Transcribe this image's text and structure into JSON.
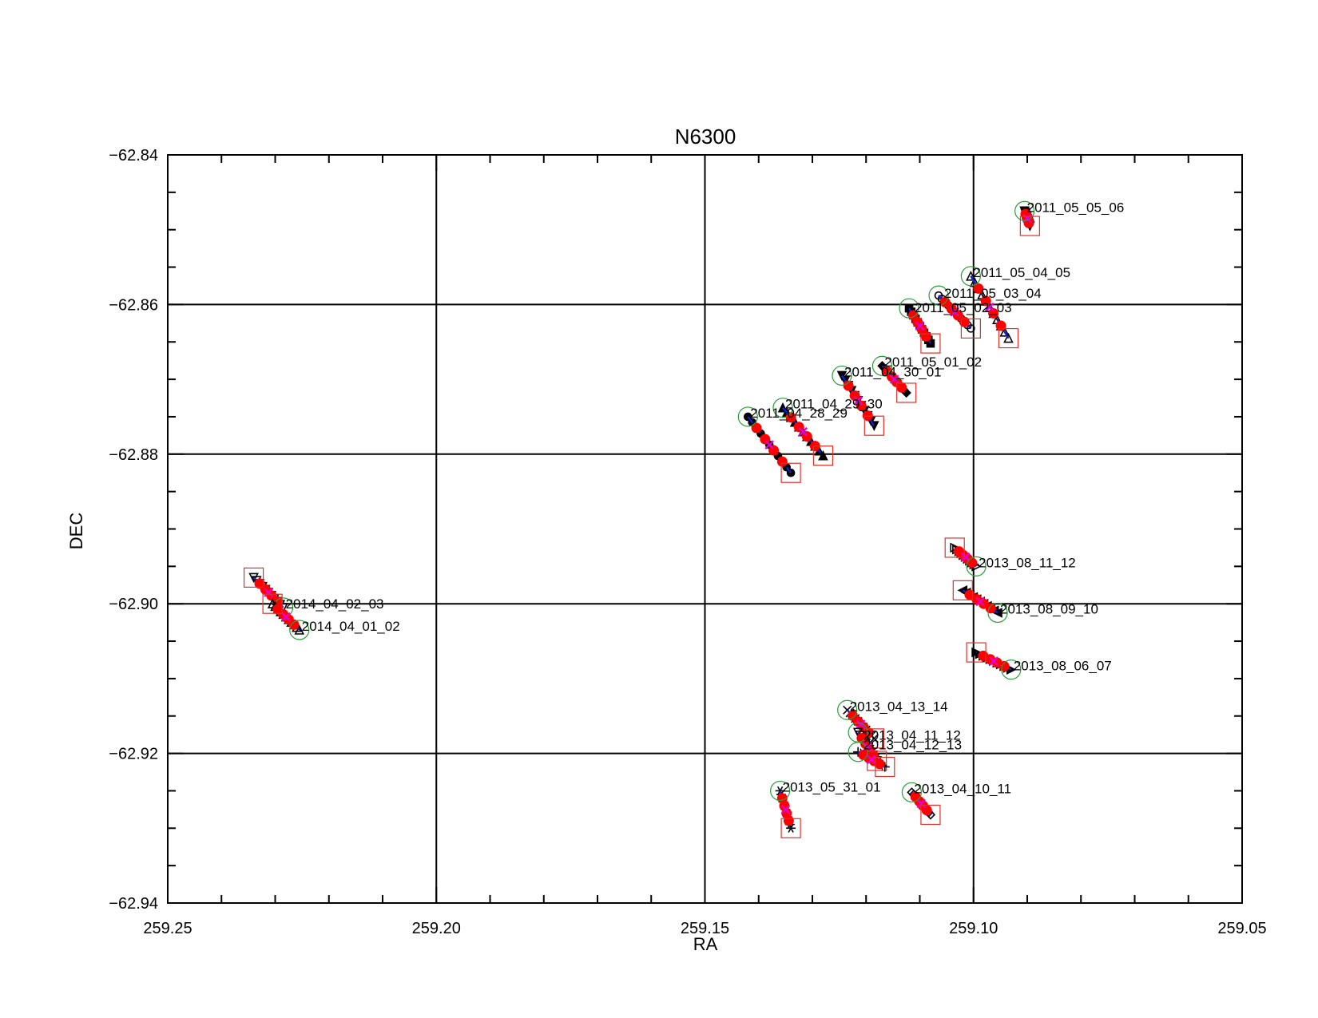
{
  "chart_data": {
    "type": "scatter",
    "title": "N6300",
    "xlabel": "RA",
    "ylabel": "DEC",
    "xlim": [
      259.25,
      259.05
    ],
    "ylim": [
      -62.94,
      -62.84
    ],
    "x_reversed": true,
    "grid": true,
    "x_ticks": [
      "259.25",
      "259.20",
      "259.15",
      "259.10",
      "259.05"
    ],
    "y_ticks": [
      "-62.84",
      "-62.86",
      "-62.88",
      "-62.90",
      "-62.92",
      "-62.94"
    ],
    "marker_legend": {
      "start": "green open circle",
      "end": "red open square",
      "points": "red filled circles",
      "midpoint": "magenta cross",
      "connector": "blue line"
    },
    "colors": {
      "start_circle": "#2a9d3a",
      "end_square": "#e0302a",
      "points": "#ff0000",
      "midpoint": "#e000e0",
      "connector": "#1020d0",
      "grid": "#000000"
    },
    "series": [
      {
        "name": "2011_05_05_06",
        "start": [
          259.0905,
          -62.8475
        ],
        "end": [
          259.0895,
          -62.8495
        ],
        "marker": "filled-triangle-down"
      },
      {
        "name": "2011_05_04_05",
        "start": [
          259.1005,
          -62.8562
        ],
        "end": [
          259.0935,
          -62.8645
        ],
        "marker": "open-triangle-up"
      },
      {
        "name": "2011_05_03_04",
        "start": [
          259.1065,
          -62.8588
        ],
        "end": [
          259.1005,
          -62.8632
        ],
        "marker": "open-circle"
      },
      {
        "name": "2011_05_02_03",
        "start": [
          259.112,
          -62.8605
        ],
        "end": [
          259.108,
          -62.8652
        ],
        "marker": "filled-square"
      },
      {
        "name": "2011_05_01_02",
        "start": [
          259.117,
          -62.8682
        ],
        "end": [
          259.1125,
          -62.8718
        ],
        "marker": "filled-diamond"
      },
      {
        "name": "2011_04_30_01",
        "start": [
          259.1245,
          -62.8695
        ],
        "end": [
          259.1185,
          -62.8762
        ],
        "marker": "filled-triangle-down"
      },
      {
        "name": "2011_04_29_30",
        "start": [
          259.1355,
          -62.8738
        ],
        "end": [
          259.128,
          -62.8802
        ],
        "marker": "filled-triangle-up"
      },
      {
        "name": "2011_04_28_29",
        "start": [
          259.142,
          -62.875
        ],
        "end": [
          259.134,
          -62.8825
        ],
        "marker": "filled-circle"
      },
      {
        "name": "2013_08_11_12",
        "start": [
          259.0995,
          -62.895
        ],
        "end": [
          259.1035,
          -62.8925
        ],
        "marker": "open-triangle-right"
      },
      {
        "name": "2013_08_09_10",
        "start": [
          259.0955,
          -62.9012
        ],
        "end": [
          259.102,
          -62.8982
        ],
        "marker": "filled-triangle-left"
      },
      {
        "name": "2013_08_06_07",
        "start": [
          259.093,
          -62.9088
        ],
        "end": [
          259.0995,
          -62.9065
        ],
        "marker": "filled-triangle-right"
      },
      {
        "name": "2013_04_13_14",
        "start": [
          259.1235,
          -62.9142
        ],
        "end": [
          259.1185,
          -62.918
        ],
        "marker": "x"
      },
      {
        "name": "2013_04_11_12",
        "start": [
          259.1215,
          -62.9172
        ],
        "end": [
          259.118,
          -62.921
        ],
        "marker": "open-triangle-down"
      },
      {
        "name": "2013_04_12_13",
        "start": [
          259.1215,
          -62.9198
        ],
        "end": [
          259.1165,
          -62.9218
        ],
        "marker": "plus"
      },
      {
        "name": "2013_04_10_11",
        "start": [
          259.1115,
          -62.9252
        ],
        "end": [
          259.108,
          -62.9282
        ],
        "marker": "open-diamond"
      },
      {
        "name": "2013_05_31_01",
        "start": [
          259.136,
          -62.925
        ],
        "end": [
          259.134,
          -62.93
        ],
        "marker": "asterisk"
      },
      {
        "name": "2014_04_02_03",
        "start": [
          259.2285,
          -62.9005
        ],
        "end": [
          259.234,
          -62.8965
        ],
        "marker": "open-triangle-down"
      },
      {
        "name": "2014_04_01_02",
        "start": [
          259.2255,
          -62.9035
        ],
        "end": [
          259.2305,
          -62.9
        ],
        "marker": "open-triangle-up"
      }
    ]
  }
}
